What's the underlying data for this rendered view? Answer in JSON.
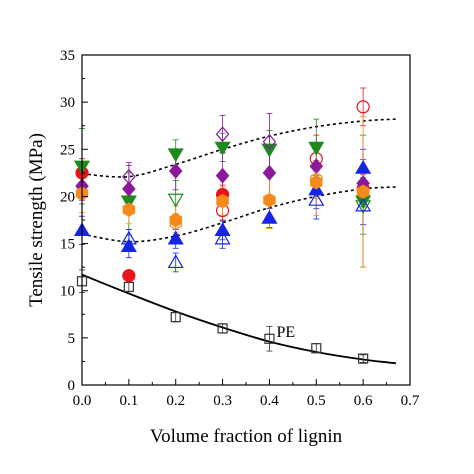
{
  "chart_data": {
    "type": "scatter",
    "title": "",
    "xlabel": "Volume fraction of lignin",
    "ylabel": "Tensile strength (MPa)",
    "xlim": [
      0.0,
      0.7
    ],
    "ylim": [
      0,
      35
    ],
    "xticks": [
      "0.0",
      "0.1",
      "0.2",
      "0.3",
      "0.4",
      "0.5",
      "0.6",
      "0.7"
    ],
    "yticks": [
      "0",
      "5",
      "10",
      "15",
      "20",
      "25",
      "30",
      "35"
    ],
    "grid": false,
    "legend": "none",
    "annotations": [
      {
        "text": "PE",
        "x": 0.415,
        "y": 5.6
      }
    ],
    "series": [
      {
        "marker": "square-open",
        "color": "#333333",
        "points": [
          [
            0.0,
            11.0,
            1.2
          ],
          [
            0.1,
            10.4,
            0.5
          ],
          [
            0.2,
            7.2,
            0.5
          ],
          [
            0.3,
            6.0,
            0.5
          ],
          [
            0.4,
            4.9,
            1.3
          ],
          [
            0.5,
            3.9,
            0.5
          ],
          [
            0.6,
            2.8,
            0.4
          ]
        ]
      },
      {
        "marker": "circle-filled",
        "color": "#e8141b",
        "points": [
          [
            0.0,
            22.5,
            1.5
          ],
          [
            0.1,
            11.6,
            0.5
          ],
          [
            0.3,
            20.2,
            1.0
          ],
          [
            0.6,
            20.8,
            1.5
          ]
        ]
      },
      {
        "marker": "circle-open",
        "color": "#e8141b",
        "points": [
          [
            0.3,
            18.5,
            1.0
          ],
          [
            0.5,
            24.0,
            2.5
          ],
          [
            0.6,
            29.5,
            2.0
          ]
        ]
      },
      {
        "marker": "triangle-down-filled",
        "color": "#1e8a1e",
        "points": [
          [
            0.0,
            23.2,
            4.0
          ],
          [
            0.1,
            19.5,
            3.0
          ],
          [
            0.2,
            24.5,
            1.5
          ],
          [
            0.3,
            25.2,
            1.5
          ],
          [
            0.4,
            25.0,
            2.0
          ],
          [
            0.5,
            25.2,
            3.0
          ],
          [
            0.6,
            19.5,
            7.0
          ]
        ]
      },
      {
        "marker": "triangle-down-open",
        "color": "#1e8a1e",
        "points": [
          [
            0.2,
            19.7,
            2.0
          ],
          [
            0.6,
            19.0,
            3.0
          ]
        ]
      },
      {
        "marker": "diamond-filled",
        "color": "#8b1a9a",
        "points": [
          [
            0.0,
            21.1,
            1.5
          ],
          [
            0.1,
            20.8,
            2.5
          ],
          [
            0.2,
            22.7,
            2.0
          ],
          [
            0.3,
            22.2,
            2.5
          ],
          [
            0.4,
            22.5,
            2.5
          ],
          [
            0.5,
            23.2,
            2.5
          ],
          [
            0.6,
            21.4,
            2.5
          ]
        ]
      },
      {
        "marker": "diamond-open",
        "color": "#8b1a9a",
        "points": [
          [
            0.1,
            22.1,
            1.5
          ],
          [
            0.3,
            26.6,
            2.0
          ],
          [
            0.4,
            25.8,
            3.0
          ]
        ]
      },
      {
        "marker": "triangle-up-filled",
        "color": "#1524e8",
        "points": [
          [
            0.0,
            16.4,
            1.5
          ],
          [
            0.1,
            14.7,
            1.2
          ],
          [
            0.2,
            15.5,
            1.0
          ],
          [
            0.3,
            16.4,
            1.0
          ],
          [
            0.4,
            17.7,
            1.0
          ],
          [
            0.5,
            20.7,
            2.0
          ],
          [
            0.6,
            23.0,
            2.0
          ]
        ]
      },
      {
        "marker": "triangle-up-open",
        "color": "#1524e8",
        "points": [
          [
            0.1,
            15.5,
            1.0
          ],
          [
            0.2,
            13.0,
            1.0
          ],
          [
            0.3,
            15.5,
            1.0
          ],
          [
            0.5,
            19.6,
            2.0
          ],
          [
            0.6,
            19.0,
            2.0
          ]
        ]
      },
      {
        "marker": "hexagon-filled",
        "color": "#f58a1a",
        "points": [
          [
            0.0,
            20.3,
            2.0
          ],
          [
            0.1,
            18.6,
            1.5
          ],
          [
            0.2,
            17.5,
            1.5
          ],
          [
            0.3,
            19.5,
            1.5
          ],
          [
            0.4,
            19.6,
            3.0
          ],
          [
            0.5,
            21.5,
            3.5
          ],
          [
            0.6,
            20.5,
            8.0
          ]
        ]
      },
      {
        "marker": "hexagon-open",
        "color": "#f58a1a",
        "points": [
          [
            0.2,
            17.2,
            1.0
          ],
          [
            0.5,
            21.8,
            2.0
          ]
        ]
      }
    ],
    "curves": [
      {
        "style": "solid",
        "color": "#000000",
        "points": [
          [
            0.0,
            11.7
          ],
          [
            0.1,
            9.7
          ],
          [
            0.2,
            7.8
          ],
          [
            0.3,
            6.1
          ],
          [
            0.4,
            4.6
          ],
          [
            0.5,
            3.5
          ],
          [
            0.6,
            2.7
          ],
          [
            0.67,
            2.3
          ]
        ]
      },
      {
        "style": "dotted",
        "color": "#000000",
        "points": [
          [
            0.0,
            22.4
          ],
          [
            0.1,
            22.1
          ],
          [
            0.2,
            23.4
          ],
          [
            0.3,
            25.0
          ],
          [
            0.4,
            26.4
          ],
          [
            0.5,
            27.4
          ],
          [
            0.6,
            28.0
          ],
          [
            0.67,
            28.2
          ]
        ]
      },
      {
        "style": "dotted",
        "color": "#000000",
        "points": [
          [
            0.0,
            16.0
          ],
          [
            0.1,
            15.2
          ],
          [
            0.2,
            15.8
          ],
          [
            0.3,
            17.2
          ],
          [
            0.4,
            18.8
          ],
          [
            0.5,
            20.0
          ],
          [
            0.6,
            20.8
          ],
          [
            0.67,
            21.0
          ]
        ]
      }
    ]
  }
}
